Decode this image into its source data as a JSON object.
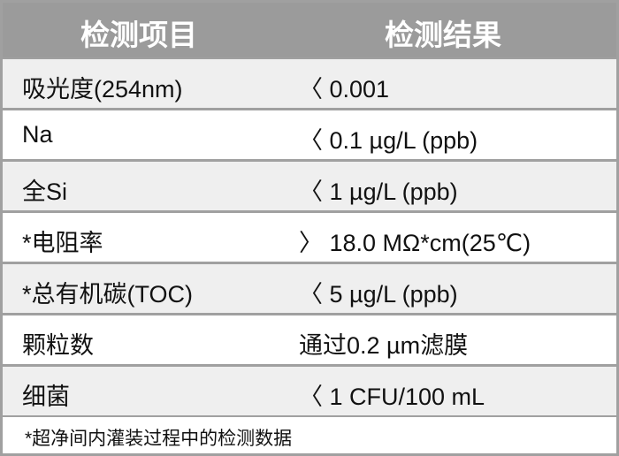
{
  "header": {
    "col1": "检测项目",
    "col2": "检测结果"
  },
  "rows": [
    {
      "item": "吸光度(254nm)",
      "result": "〈 0.001"
    },
    {
      "item": "Na",
      "result": "〈 0.1 µg/L (ppb)"
    },
    {
      "item": "全Si",
      "result": "〈 1 µg/L (ppb)"
    },
    {
      "item": "*电阻率",
      "result": "〉 18.0 MΩ*cm(25℃)"
    },
    {
      "item": "*总有机碳(TOC)",
      "result": "〈 5 µg/L (ppb)"
    },
    {
      "item": "颗粒数",
      "result": "通过0.2 µm滤膜"
    },
    {
      "item": "细菌",
      "result": "〈 1 CFU/100 mL"
    }
  ],
  "footnote": "*超净间内灌装过程中的检测数据",
  "colors": {
    "header_bg": "#9b9b9b",
    "row_alt_bg": "#efefef",
    "border": "#a0a0a0"
  }
}
